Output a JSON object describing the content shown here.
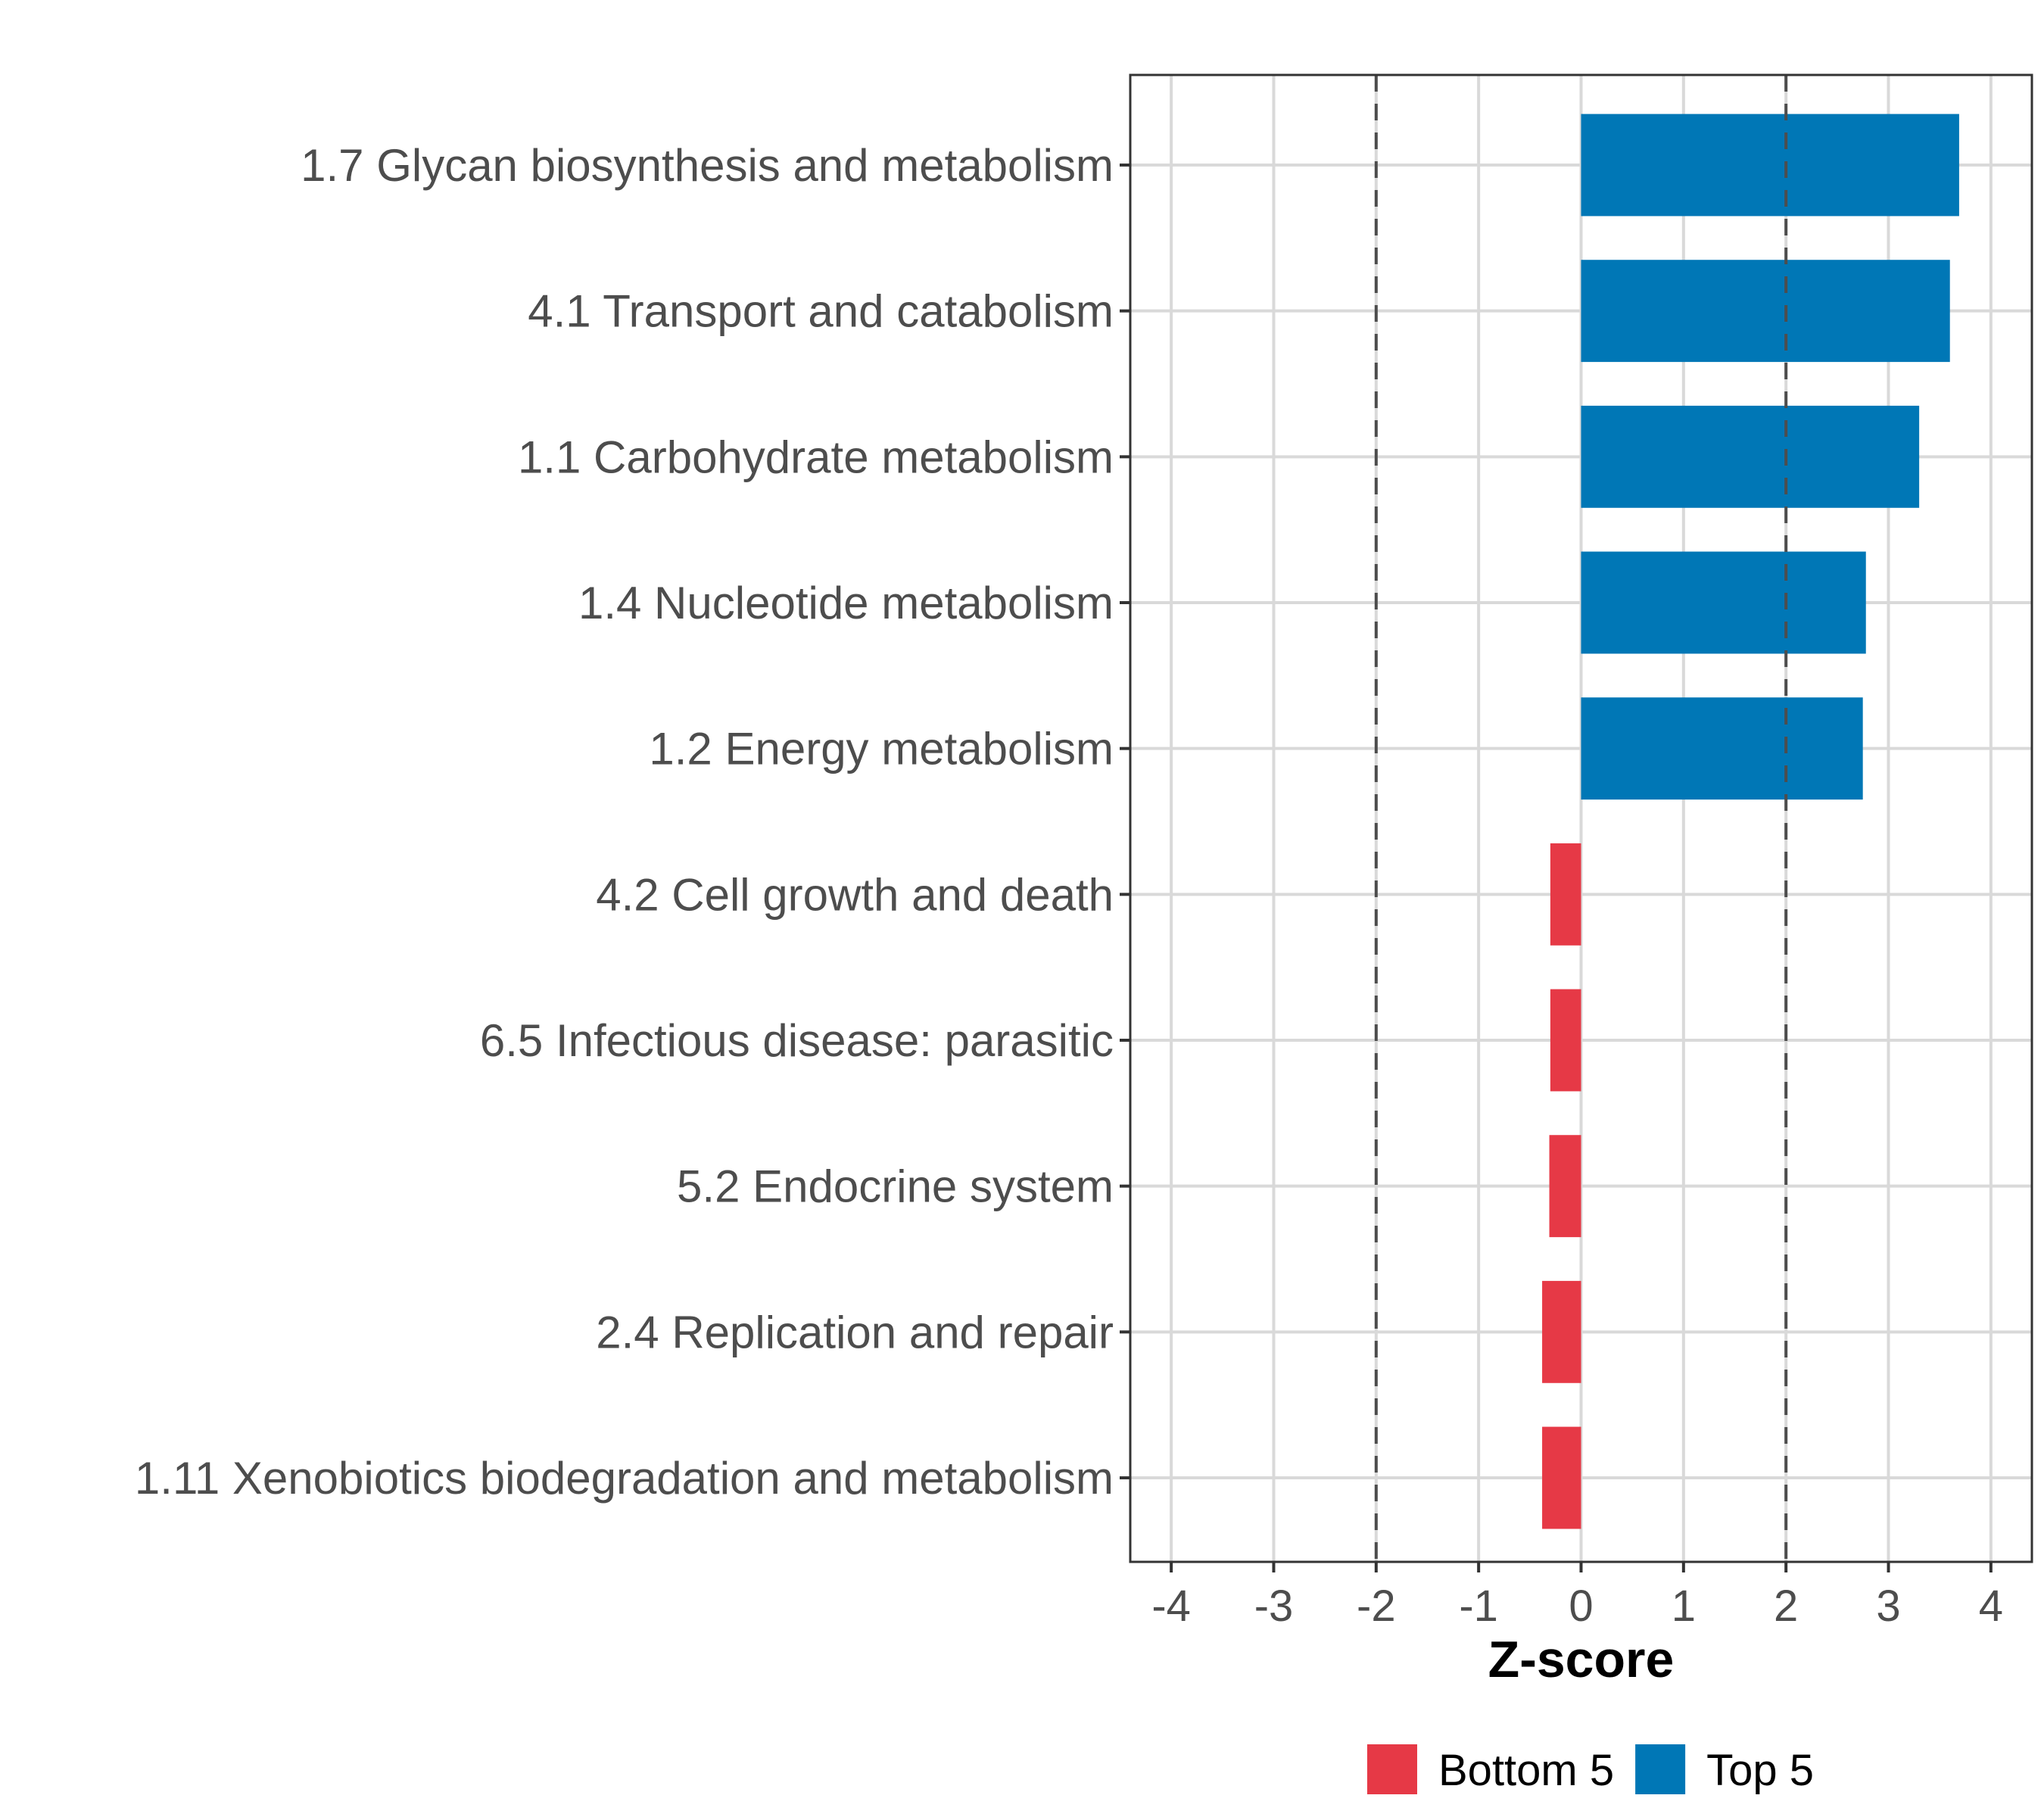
{
  "chart_data": {
    "type": "bar",
    "orientation": "horizontal",
    "title": "",
    "xlabel": "Z-score",
    "ylabel": "",
    "xlim": [
      -4.4,
      4.4
    ],
    "x_ticks": [
      -4,
      -3,
      -2,
      -1,
      0,
      1,
      2,
      3,
      4
    ],
    "x_tick_labels": [
      "-4",
      "-3",
      "-2",
      "-1",
      "0",
      "1",
      "2",
      "3",
      "4"
    ],
    "grid": true,
    "reference_lines": [
      {
        "x": -2,
        "style": "dashed",
        "color": "#4d4d4d"
      },
      {
        "x": 2,
        "style": "dashed",
        "color": "#4d4d4d"
      }
    ],
    "categories": [
      "1.7 Glycan biosynthesis and metabolism",
      "4.1 Transport and catabolism",
      "1.1 Carbohydrate metabolism",
      "1.4 Nucleotide metabolism",
      "1.2 Energy metabolism",
      "4.2 Cell growth and death",
      "6.5 Infectious disease: parasitic",
      "5.2 Endocrine system",
      "2.4 Replication and repair",
      "1.11 Xenobiotics biodegradation and metabolism"
    ],
    "values": [
      3.69,
      3.6,
      3.3,
      2.78,
      2.75,
      -0.3,
      -0.3,
      -0.31,
      -0.38,
      -0.38
    ],
    "groups": [
      "Top 5",
      "Top 5",
      "Top 5",
      "Top 5",
      "Top 5",
      "Bottom 5",
      "Bottom 5",
      "Bottom 5",
      "Bottom 5",
      "Bottom 5"
    ],
    "legend": {
      "placement": "bottom",
      "entries": [
        {
          "label": "Bottom 5",
          "color": "#E63946"
        },
        {
          "label": "Top 5",
          "color": "#0077B6"
        }
      ]
    },
    "colors": {
      "Bottom 5": "#E63946",
      "Top 5": "#0077B6",
      "grid": "#d9d9d9",
      "panel_border": "#333333",
      "text": "#4d4d4d"
    }
  }
}
